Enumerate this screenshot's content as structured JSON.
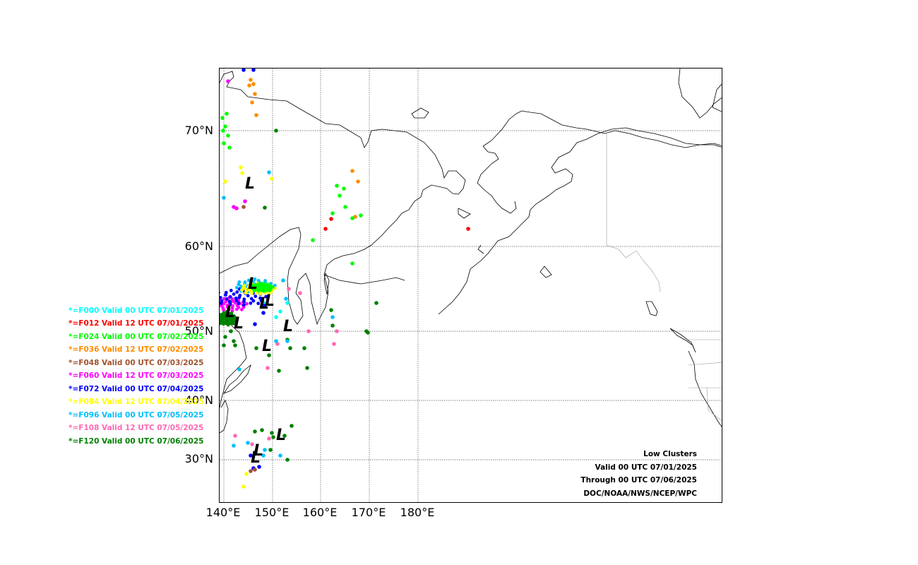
{
  "axes": {
    "lat_labels": [
      "70°N",
      "60°N",
      "50°N",
      "40°N",
      "30°N"
    ],
    "lon_labels": [
      "140°E",
      "150°E",
      "160°E",
      "170°E",
      "180°E"
    ]
  },
  "legend": [
    {
      "label": "*=F000 Valid 00 UTC 07/01/2025",
      "color": "#00ffff"
    },
    {
      "label": "*=F012 Valid 12 UTC 07/01/2025",
      "color": "#ff0000"
    },
    {
      "label": "*=F024 Valid 00 UTC 07/02/2025",
      "color": "#00ff00"
    },
    {
      "label": "*=F036 Valid 12 UTC 07/02/2025",
      "color": "#ff8c00"
    },
    {
      "label": "*=F048 Valid 00 UTC 07/03/2025",
      "color": "#a0522d"
    },
    {
      "label": "*=F060 Valid 12 UTC 07/03/2025",
      "color": "#ff00ff"
    },
    {
      "label": "*=F072 Valid 00 UTC 07/04/2025",
      "color": "#0000ff"
    },
    {
      "label": "*=F084 Valid 12 UTC 07/04/2025",
      "color": "#ffff00"
    },
    {
      "label": "*=F096 Valid 00 UTC 07/05/2025",
      "color": "#00bfff"
    },
    {
      "label": "*=F108 Valid 12 UTC 07/05/2025",
      "color": "#ff69b4"
    },
    {
      "label": "*=F120 Valid 00 UTC 07/06/2025",
      "color": "#008000"
    }
  ],
  "info": {
    "title": "Low Clusters",
    "valid": "Valid 00 UTC 07/01/2025",
    "through": "Through 00 UTC 07/06/2025",
    "credit": "DOC/NOAA/NWS/NCEP/WPC"
  },
  "cluster_symbol": "L"
}
